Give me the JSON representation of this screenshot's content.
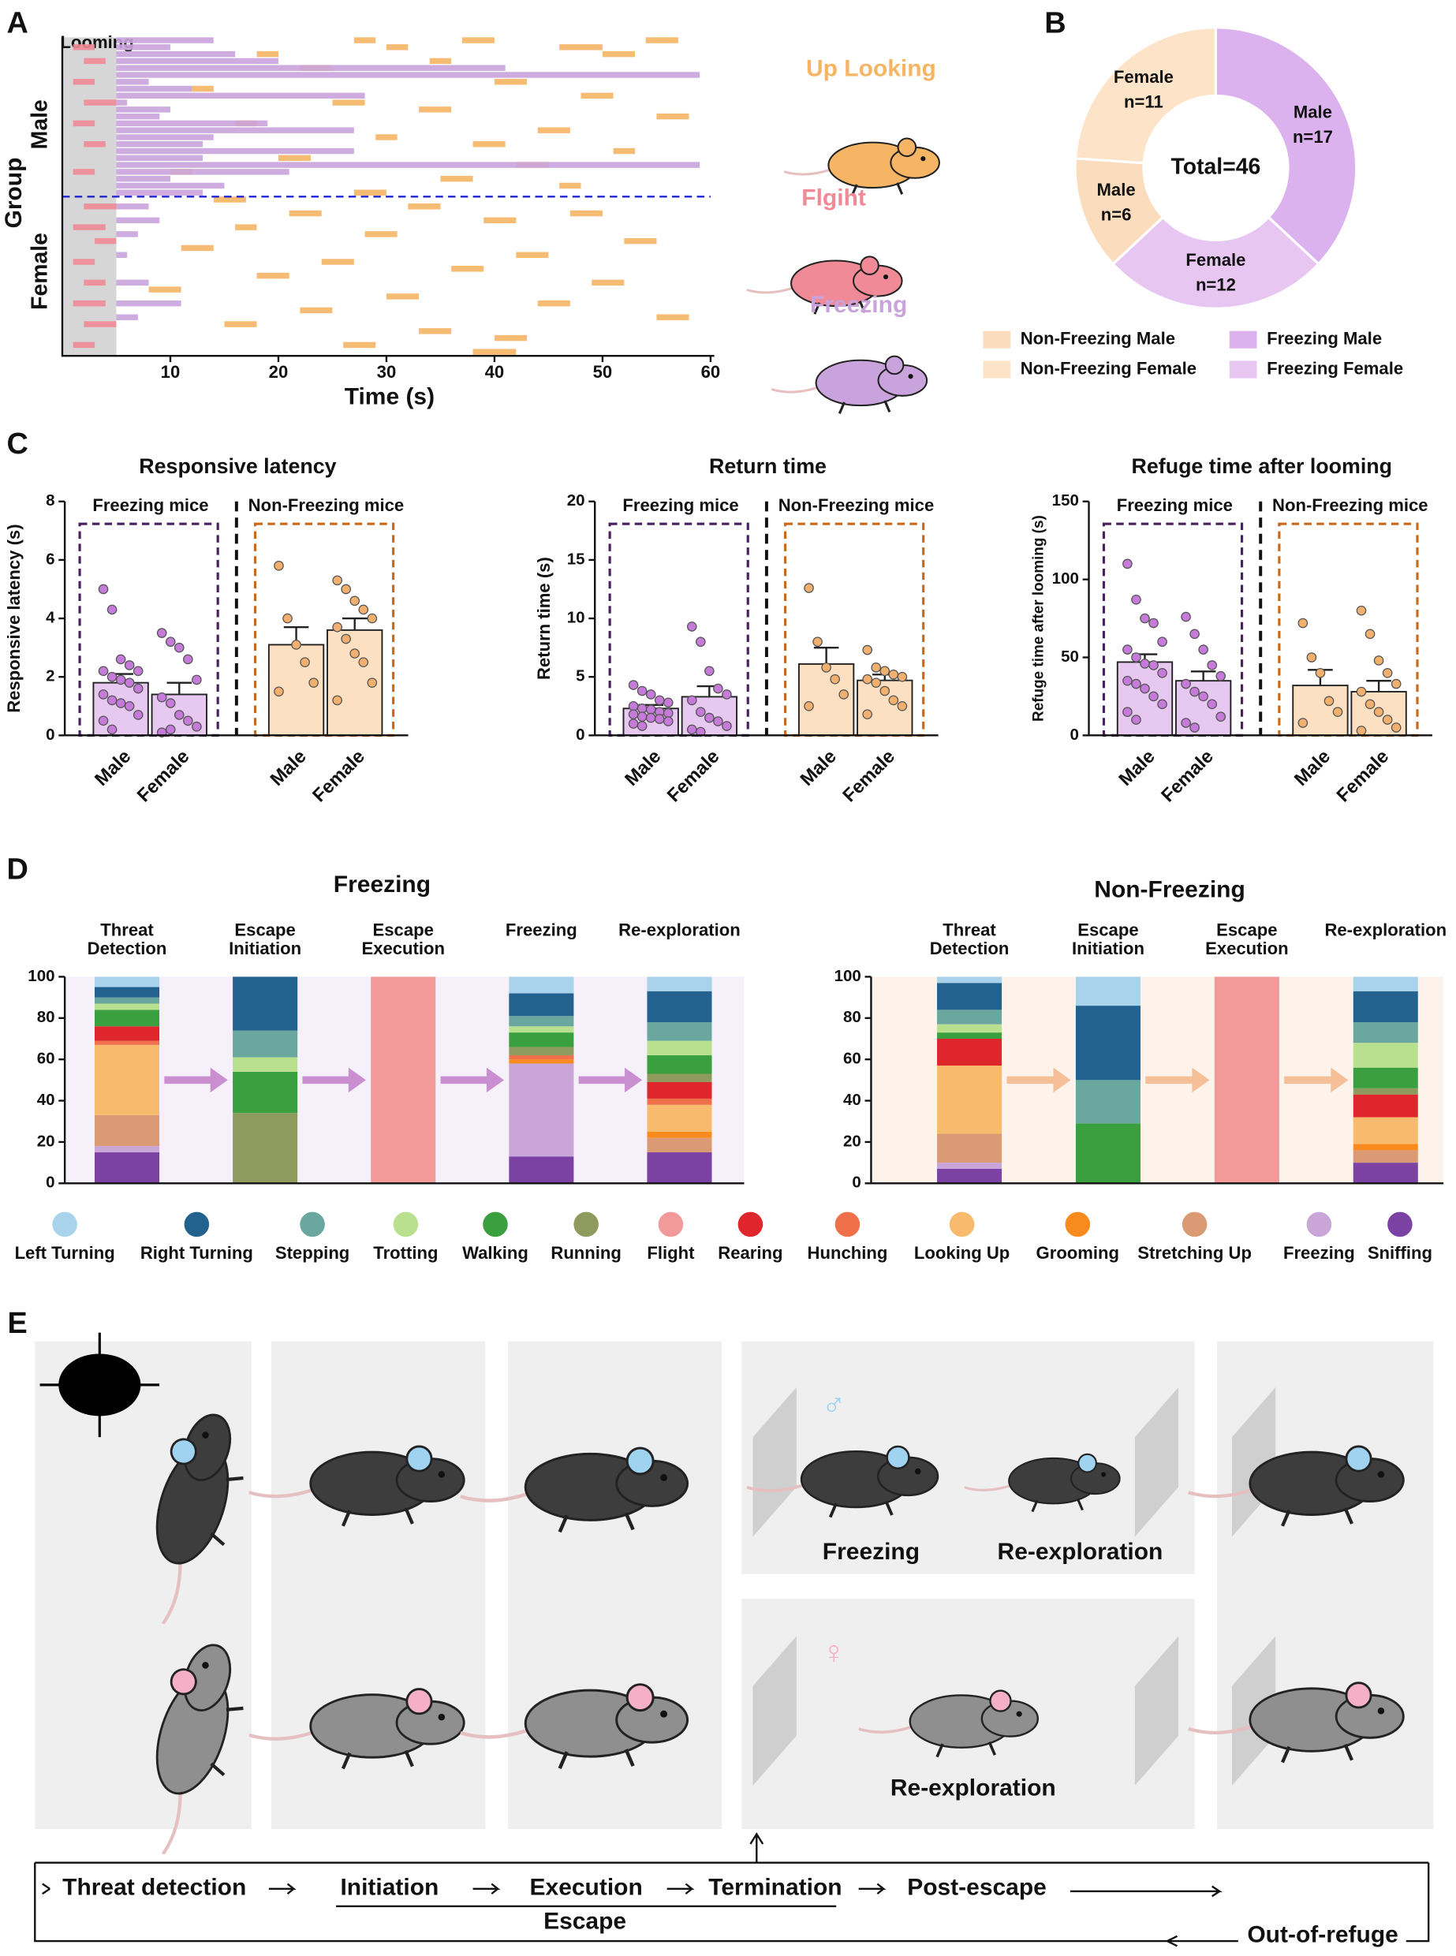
{
  "panel_labels": [
    "A",
    "B",
    "C",
    "D",
    "E"
  ],
  "chart_data": [
    {
      "type": "raster",
      "ylabel": "Group",
      "groups": [
        "Male",
        "Female"
      ],
      "rows": 46,
      "male_rows": 23,
      "xlabel": "Time (s)",
      "xlim": [
        0,
        60
      ],
      "xticks": [
        10,
        20,
        30,
        40,
        50,
        60
      ],
      "looming_label": "Looming",
      "looming": [
        0,
        5
      ],
      "series": [
        {
          "name": "Up Looking",
          "color": "#f6b564",
          "segments": [
            [
              0,
              27,
              29
            ],
            [
              0,
              37,
              40
            ],
            [
              0,
              54,
              57
            ],
            [
              1,
              30,
              32
            ],
            [
              1,
              46,
              50
            ],
            [
              2,
              18,
              20
            ],
            [
              2,
              50,
              53
            ],
            [
              3,
              34,
              36
            ],
            [
              4,
              22,
              25
            ],
            [
              6,
              40,
              43
            ],
            [
              7,
              12,
              14
            ],
            [
              8,
              48,
              51
            ],
            [
              9,
              25,
              28
            ],
            [
              10,
              33,
              36
            ],
            [
              11,
              55,
              58
            ],
            [
              12,
              16,
              18
            ],
            [
              13,
              44,
              47
            ],
            [
              14,
              29,
              31
            ],
            [
              15,
              38,
              41
            ],
            [
              16,
              51,
              53
            ],
            [
              17,
              20,
              23
            ],
            [
              18,
              42,
              45
            ],
            [
              19,
              10,
              12
            ],
            [
              20,
              35,
              38
            ],
            [
              21,
              46,
              48
            ],
            [
              22,
              27,
              30
            ],
            [
              23,
              14,
              17
            ],
            [
              24,
              32,
              35
            ],
            [
              25,
              21,
              24
            ],
            [
              25,
              47,
              50
            ],
            [
              26,
              39,
              42
            ],
            [
              27,
              16,
              18
            ],
            [
              28,
              28,
              31
            ],
            [
              29,
              52,
              55
            ],
            [
              30,
              11,
              14
            ],
            [
              31,
              42,
              45
            ],
            [
              32,
              24,
              27
            ],
            [
              33,
              36,
              39
            ],
            [
              34,
              18,
              21
            ],
            [
              35,
              49,
              52
            ],
            [
              36,
              8,
              11
            ],
            [
              37,
              30,
              33
            ],
            [
              38,
              44,
              47
            ],
            [
              39,
              22,
              25
            ],
            [
              40,
              55,
              58
            ],
            [
              41,
              15,
              18
            ],
            [
              42,
              33,
              36
            ],
            [
              43,
              40,
              43
            ],
            [
              44,
              26,
              29
            ],
            [
              45,
              38,
              42
            ]
          ]
        },
        {
          "name": "Flgiht",
          "color": "#f08a96",
          "segments": [
            [
              1,
              1,
              3
            ],
            [
              3,
              2,
              4
            ],
            [
              6,
              1,
              3
            ],
            [
              9,
              2,
              5
            ],
            [
              12,
              1,
              3
            ],
            [
              15,
              2,
              4
            ],
            [
              19,
              1,
              3
            ],
            [
              24,
              2,
              5
            ],
            [
              27,
              1,
              4
            ],
            [
              29,
              3,
              5
            ],
            [
              32,
              1,
              3
            ],
            [
              35,
              2,
              4
            ],
            [
              38,
              1,
              4
            ],
            [
              41,
              2,
              5
            ],
            [
              44,
              1,
              3
            ]
          ]
        },
        {
          "name": "Freezing",
          "color": "#c9a3dc",
          "segments": [
            [
              0,
              5,
              14
            ],
            [
              1,
              5,
              10
            ],
            [
              2,
              5,
              16
            ],
            [
              3,
              5,
              20
            ],
            [
              4,
              5,
              41
            ],
            [
              5,
              5,
              59
            ],
            [
              6,
              5,
              8
            ],
            [
              7,
              5,
              12
            ],
            [
              8,
              5,
              28
            ],
            [
              9,
              5,
              6
            ],
            [
              10,
              5,
              10
            ],
            [
              11,
              5,
              9
            ],
            [
              12,
              5,
              19
            ],
            [
              13,
              5,
              27
            ],
            [
              14,
              5,
              14
            ],
            [
              15,
              5,
              13
            ],
            [
              16,
              5,
              27
            ],
            [
              17,
              5,
              13
            ],
            [
              18,
              5,
              59
            ],
            [
              19,
              5,
              21
            ],
            [
              20,
              5,
              10
            ],
            [
              21,
              5,
              15
            ],
            [
              22,
              5,
              13
            ],
            [
              24,
              5,
              8
            ],
            [
              26,
              5,
              9
            ],
            [
              28,
              5,
              7
            ],
            [
              31,
              5,
              6
            ],
            [
              35,
              5,
              8
            ],
            [
              38,
              5,
              11
            ],
            [
              40,
              5,
              7
            ]
          ]
        }
      ]
    },
    {
      "type": "donut",
      "center_label": "Total=46",
      "labels": [
        "Male",
        "Female",
        "Male",
        "Female"
      ],
      "values": [
        17,
        12,
        6,
        11
      ],
      "value_labels": [
        "n=17",
        "n=12",
        "n=6",
        "n=11"
      ],
      "colors": [
        "#dcb2ee",
        "#e8c6f2",
        "#fbdcbc",
        "#fde3c8"
      ],
      "legend_labels": [
        "Freezing Male",
        "Freezing Female",
        "Non-Freezing Male",
        "Non-Freezing Female"
      ]
    },
    {
      "type": "bar-scatter",
      "title": "Responsive latency",
      "ylabel": "Responsive latency (s)",
      "groups": [
        "Freezing mice",
        "Non-Freezing mice"
      ],
      "group_colors": [
        "#4a2063",
        "#c8691c"
      ],
      "categories": [
        "Male",
        "Female",
        "Male",
        "Female"
      ],
      "values": [
        1.8,
        1.4,
        3.1,
        3.6
      ],
      "errors": [
        0.3,
        0.4,
        0.6,
        0.4
      ],
      "colors": [
        "#e6c8f0",
        "#e6c8f0",
        "#fde0c2",
        "#fde0c2"
      ],
      "point_colors": [
        "#c67ad9",
        "#c67ad9",
        "#f2b06e",
        "#f2b06e"
      ],
      "points": [
        [
          5.0,
          4.3,
          2.6,
          2.4,
          2.2,
          2.2,
          2.0,
          1.9,
          1.8,
          1.6,
          1.4,
          1.2,
          1.1,
          1.0,
          0.7,
          0.5,
          0.2
        ],
        [
          3.5,
          3.2,
          3.0,
          2.6,
          1.9,
          1.3,
          1.1,
          0.7,
          0.5,
          0.3,
          0.1,
          0.2
        ],
        [
          5.8,
          4.0,
          3.1,
          2.5,
          1.8,
          1.5
        ],
        [
          5.3,
          5.0,
          4.6,
          4.3,
          4.0,
          3.7,
          3.3,
          2.8,
          2.5,
          1.8,
          1.2
        ]
      ],
      "ylim": [
        0,
        8
      ],
      "yticks": [
        0,
        2,
        4,
        6,
        8
      ]
    },
    {
      "type": "bar-scatter",
      "title": "Return time",
      "ylabel": "Return time (s)",
      "groups": [
        "Freezing mice",
        "Non-Freezing mice"
      ],
      "group_colors": [
        "#4a2063",
        "#c8691c"
      ],
      "categories": [
        "Male",
        "Female",
        "Male",
        "Female"
      ],
      "values": [
        2.3,
        3.3,
        6.1,
        4.7
      ],
      "errors": [
        0.3,
        0.9,
        1.4,
        0.5
      ],
      "colors": [
        "#e6c8f0",
        "#e6c8f0",
        "#fde0c2",
        "#fde0c2"
      ],
      "point_colors": [
        "#c67ad9",
        "#c67ad9",
        "#f2b06e",
        "#f2b06e"
      ],
      "points": [
        [
          4.3,
          3.8,
          3.5,
          3.0,
          2.8,
          2.5,
          2.3,
          2.2,
          2.0,
          1.9,
          1.8,
          1.6,
          1.5,
          1.4,
          1.2,
          1.0,
          0.8
        ],
        [
          9.3,
          8.0,
          5.5,
          4.0,
          3.5,
          3.0,
          2.0,
          1.5,
          1.2,
          0.8,
          0.5,
          0.3
        ],
        [
          12.6,
          8.0,
          5.8,
          4.8,
          3.5,
          2.5
        ],
        [
          7.3,
          5.8,
          5.5,
          5.2,
          5.0,
          4.8,
          4.5,
          3.8,
          3.0,
          2.5,
          1.8
        ]
      ],
      "ylim": [
        0,
        20
      ],
      "yticks": [
        0,
        5,
        10,
        15,
        20
      ]
    },
    {
      "type": "bar-scatter",
      "title": "Refuge time after looming",
      "ylabel": "Refuge time after looming (s)",
      "groups": [
        "Freezing mice",
        "Non-Freezing mice"
      ],
      "group_colors": [
        "#4a2063",
        "#c8691c"
      ],
      "categories": [
        "Male",
        "Female",
        "Male",
        "Female"
      ],
      "values": [
        47,
        35,
        32,
        28
      ],
      "errors": [
        5,
        6,
        10,
        7
      ],
      "colors": [
        "#e6c8f0",
        "#e6c8f0",
        "#fde0c2",
        "#fde0c2"
      ],
      "point_colors": [
        "#c67ad9",
        "#c67ad9",
        "#f2b06e",
        "#f2b06e"
      ],
      "points": [
        [
          110,
          87,
          75,
          72,
          60,
          55,
          50,
          46,
          45,
          40,
          35,
          33,
          30,
          25,
          20,
          15,
          10
        ],
        [
          76,
          65,
          55,
          45,
          38,
          33,
          28,
          25,
          20,
          12,
          8,
          5
        ],
        [
          72,
          50,
          40,
          22,
          15,
          8
        ],
        [
          80,
          65,
          48,
          40,
          33,
          28,
          20,
          15,
          10,
          5,
          3
        ]
      ],
      "ylim": [
        0,
        150
      ],
      "yticks": [
        0,
        50,
        100,
        150
      ]
    },
    {
      "type": "stacked-bar",
      "title": "Freezing",
      "background": "#f6f0fa",
      "arrow_color": "#c98fd0",
      "categories": [
        "Threat Detection",
        "Escape Initiation",
        "Escape Execution",
        "Freezing",
        "Re-exploration"
      ],
      "ylim": [
        0,
        100
      ],
      "yticks": [
        0,
        20,
        40,
        60,
        80,
        100
      ],
      "series": [
        {
          "values": [
            5,
            0,
            0,
            8,
            7
          ]
        },
        {
          "values": [
            5,
            26,
            0,
            11,
            15
          ]
        },
        {
          "values": [
            3,
            13,
            0,
            5,
            9
          ]
        },
        {
          "values": [
            3,
            7,
            0,
            3,
            7
          ]
        },
        {
          "values": [
            8,
            20,
            0,
            7,
            9
          ]
        },
        {
          "values": [
            0,
            34,
            0,
            4,
            4
          ]
        },
        {
          "values": [
            0,
            0,
            100,
            0,
            0
          ]
        },
        {
          "values": [
            7,
            0,
            0,
            0,
            8
          ]
        },
        {
          "values": [
            2,
            0,
            0,
            2,
            3
          ]
        },
        {
          "values": [
            34,
            0,
            0,
            0,
            13
          ]
        },
        {
          "values": [
            0,
            0,
            0,
            2,
            3
          ]
        },
        {
          "values": [
            15,
            0,
            0,
            0,
            7
          ]
        },
        {
          "values": [
            3,
            0,
            0,
            45,
            0
          ]
        },
        {
          "values": [
            15,
            0,
            0,
            13,
            15
          ]
        }
      ]
    },
    {
      "type": "stacked-bar",
      "title": "Non-Freezing",
      "background": "#fdf3ea",
      "arrow_color": "#f5bf98",
      "categories": [
        "Threat Detection",
        "Escape Initiation",
        "Escape Execution",
        "Re-exploration"
      ],
      "ylim": [
        0,
        100
      ],
      "yticks": [
        0,
        20,
        40,
        60,
        80,
        100
      ],
      "series": [
        {
          "values": [
            3,
            14,
            0,
            7
          ]
        },
        {
          "values": [
            13,
            36,
            0,
            15
          ]
        },
        {
          "values": [
            7,
            21,
            0,
            10
          ]
        },
        {
          "values": [
            4,
            0,
            0,
            12
          ]
        },
        {
          "values": [
            3,
            29,
            0,
            10
          ]
        },
        {
          "values": [
            0,
            0,
            0,
            3
          ]
        },
        {
          "values": [
            0,
            0,
            100,
            0
          ]
        },
        {
          "values": [
            13,
            0,
            0,
            11
          ]
        },
        {
          "values": [
            0,
            0,
            0,
            0
          ]
        },
        {
          "values": [
            33,
            0,
            0,
            13
          ]
        },
        {
          "values": [
            0,
            0,
            0,
            3
          ]
        },
        {
          "values": [
            14,
            0,
            0,
            6
          ]
        },
        {
          "values": [
            3,
            0,
            0,
            0
          ]
        },
        {
          "values": [
            7,
            0,
            0,
            10
          ]
        }
      ]
    }
  ],
  "behaviors": [
    {
      "name": "Left Turning",
      "color": "#a9d3ea"
    },
    {
      "name": "Right Turning",
      "color": "#23618f"
    },
    {
      "name": "Stepping",
      "color": "#6aa79f"
    },
    {
      "name": "Trotting",
      "color": "#b8e08f"
    },
    {
      "name": "Walking",
      "color": "#3a9f3f"
    },
    {
      "name": "Running",
      "color": "#8f9a5e"
    },
    {
      "name": "Flight",
      "color": "#f29a9a"
    },
    {
      "name": "Rearing",
      "color": "#e0262d"
    },
    {
      "name": "Hunching",
      "color": "#f0704c"
    },
    {
      "name": "Looking Up",
      "color": "#f8bb6e"
    },
    {
      "name": "Grooming",
      "color": "#f88a1e"
    },
    {
      "name": "Stretching Up",
      "color": "#d99a74"
    },
    {
      "name": "Freezing",
      "color": "#c9a5d8"
    },
    {
      "name": "Sniffing",
      "color": "#7b42a3"
    }
  ],
  "diagram": {
    "scene_labels": [
      "Freezing",
      "Re-exploration",
      "Re-exploration"
    ],
    "sexes": [
      "♂",
      "♀"
    ],
    "flow": [
      "Threat detection",
      "Initiation",
      "Execution",
      "Termination",
      "Post-escape"
    ],
    "escape": "Escape",
    "out_of_refuge": "Out-of-refuge"
  }
}
